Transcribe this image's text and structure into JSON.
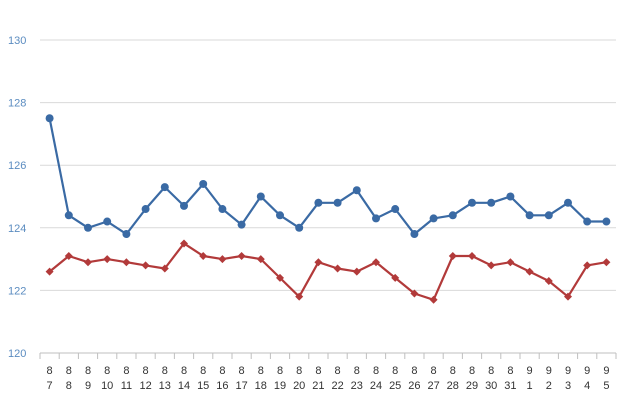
{
  "chart_data": {
    "type": "line",
    "categories": [
      [
        "8",
        "7"
      ],
      [
        "8",
        "8"
      ],
      [
        "8",
        "9"
      ],
      [
        "8",
        "10"
      ],
      [
        "8",
        "11"
      ],
      [
        "8",
        "12"
      ],
      [
        "8",
        "13"
      ],
      [
        "8",
        "14"
      ],
      [
        "8",
        "15"
      ],
      [
        "8",
        "16"
      ],
      [
        "8",
        "17"
      ],
      [
        "8",
        "18"
      ],
      [
        "8",
        "19"
      ],
      [
        "8",
        "20"
      ],
      [
        "8",
        "21"
      ],
      [
        "8",
        "22"
      ],
      [
        "8",
        "23"
      ],
      [
        "8",
        "24"
      ],
      [
        "8",
        "25"
      ],
      [
        "8",
        "26"
      ],
      [
        "8",
        "27"
      ],
      [
        "8",
        "28"
      ],
      [
        "8",
        "29"
      ],
      [
        "8",
        "30"
      ],
      [
        "8",
        "31"
      ],
      [
        "9",
        "1"
      ],
      [
        "9",
        "2"
      ],
      [
        "9",
        "3"
      ],
      [
        "9",
        "4"
      ],
      [
        "9",
        "5"
      ]
    ],
    "series": [
      {
        "marker": "circle",
        "color": "#3a6aa4",
        "values": [
          127.5,
          124.4,
          124.0,
          124.2,
          123.8,
          124.6,
          125.3,
          124.7,
          125.4,
          124.6,
          124.1,
          125.0,
          124.4,
          124.0,
          124.8,
          124.8,
          125.2,
          124.3,
          124.6,
          123.8,
          124.3,
          124.4,
          124.8,
          124.8,
          125.0,
          124.4,
          124.4,
          124.8,
          124.2,
          124.2
        ]
      },
      {
        "marker": "diamond",
        "color": "#b23a3a",
        "values": [
          122.6,
          123.1,
          122.9,
          123.0,
          122.9,
          122.8,
          122.7,
          123.5,
          123.1,
          123.0,
          123.1,
          123.0,
          122.4,
          121.8,
          122.9,
          122.7,
          122.6,
          122.9,
          122.4,
          121.9,
          121.7,
          123.1,
          123.1,
          122.8,
          122.9,
          122.6,
          122.3,
          121.8,
          122.8,
          122.9
        ]
      }
    ],
    "y_ticks": [
      "120",
      "122",
      "124",
      "126",
      "128",
      "130"
    ],
    "ylim": [
      120,
      130
    ],
    "grid": true,
    "legend": "none"
  }
}
